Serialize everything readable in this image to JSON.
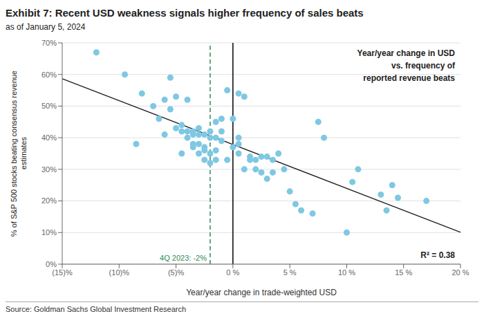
{
  "chart_data": {
    "type": "scatter",
    "title": "Exhibit 7: Recent USD weakness signals higher frequency of sales beats",
    "subtitle": "as of January 5, 2024",
    "x_label": "Year/year change in trade-weighted USD",
    "y_label": "% of S&P 500 stocks beating consensus revenue\nestimates",
    "annotations": [
      "Year/year change in USD\nvs. frequency of\nreported revenue beats",
      "R² = 0.38"
    ],
    "source": "Source: Goldman Sachs Global Investment Research",
    "xlim": [
      -15,
      20
    ],
    "ylim": [
      0,
      70
    ],
    "xticks": [
      {
        "value": -15,
        "label": "(15)%"
      },
      {
        "value": -10,
        "label": "(10)%"
      },
      {
        "value": -5,
        "label": "(5)%"
      },
      {
        "value": 0,
        "label": "0 %"
      },
      {
        "value": 5,
        "label": "5 %"
      },
      {
        "value": 10,
        "label": "10 %"
      },
      {
        "value": 15,
        "label": "15 %"
      },
      {
        "value": 20,
        "label": "20 %"
      }
    ],
    "yticks": [
      {
        "value": 0,
        "label": "0%"
      },
      {
        "value": 10,
        "label": "10%"
      },
      {
        "value": 20,
        "label": "20%"
      },
      {
        "value": 30,
        "label": "30%"
      },
      {
        "value": 40,
        "label": "40%"
      },
      {
        "value": 50,
        "label": "50%"
      },
      {
        "value": 60,
        "label": "60%"
      },
      {
        "value": 70,
        "label": "70%"
      }
    ],
    "grid": "y",
    "series": [
      {
        "type": "scatter",
        "color": "#7EC8E3",
        "x": [
          -12.0,
          -9.5,
          -8.5,
          -8.0,
          -7.0,
          -6.5,
          -6.0,
          -6.0,
          -5.5,
          -5.5,
          -5.0,
          -5.0,
          -4.5,
          -4.5,
          -4.5,
          -4.0,
          -4.0,
          -4.0,
          -3.5,
          -3.5,
          -3.5,
          -3.5,
          -3.0,
          -3.0,
          -3.0,
          -3.0,
          -2.5,
          -2.5,
          -2.5,
          -2.5,
          -2.0,
          -2.0,
          -2.0,
          -2.0,
          -1.5,
          -1.5,
          -1.5,
          -1.5,
          -1.0,
          -1.0,
          -1.0,
          -0.5,
          -0.5,
          0.0,
          0.0,
          0.5,
          0.5,
          0.5,
          0.5,
          1.0,
          1.0,
          1.5,
          1.5,
          2.0,
          2.0,
          2.5,
          2.5,
          3.0,
          3.0,
          3.5,
          3.5,
          4.0,
          4.5,
          5.0,
          5.5,
          6.0,
          7.0,
          7.5,
          8.0,
          10.0,
          10.5,
          11.0,
          13.0,
          13.5,
          14.0,
          14.5,
          17.0
        ],
        "values": [
          67.0,
          60.0,
          38.0,
          54.0,
          50.0,
          46.0,
          52.0,
          41.0,
          49.0,
          59.0,
          43.0,
          53.0,
          44.0,
          42.0,
          35.0,
          52.0,
          42.0,
          40.0,
          41.0,
          42.0,
          38.0,
          37.0,
          43.0,
          41.0,
          38.0,
          35.0,
          41.0,
          37.0,
          36.0,
          33.0,
          42.0,
          40.0,
          35.0,
          32.0,
          45.0,
          40.0,
          36.0,
          33.0,
          46.0,
          42.0,
          39.0,
          55.0,
          33.0,
          46.0,
          37.0,
          54.0,
          40.0,
          38.0,
          35.0,
          53.0,
          30.0,
          34.0,
          33.0,
          33.0,
          30.0,
          34.0,
          29.0,
          34.0,
          27.0,
          33.0,
          29.0,
          35.0,
          30.0,
          23.0,
          19.0,
          17.0,
          16.0,
          45.0,
          40.0,
          10.0,
          26.0,
          30.0,
          22.0,
          17.0,
          25.0,
          21.0,
          20.0
        ]
      },
      {
        "type": "line",
        "color": "#222222",
        "x": [
          -15,
          20
        ],
        "values": [
          58.66,
          10.1
        ]
      }
    ],
    "vertical_lines": [
      {
        "x": -2,
        "color": "#2E8B57",
        "line_style": "dashed",
        "label": "4Q 2023: -2%"
      },
      {
        "x": 0,
        "color": "black",
        "line_style": "solid"
      }
    ]
  }
}
